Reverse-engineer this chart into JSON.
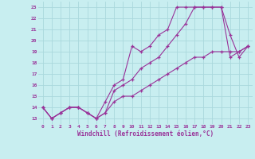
{
  "title": "",
  "xlabel": "Windchill (Refroidissement éolien,°C)",
  "bg_color": "#c8eef0",
  "line_color": "#993399",
  "grid_color": "#aad8dc",
  "xlim": [
    -0.5,
    23.5
  ],
  "ylim": [
    12.5,
    23.5
  ],
  "xticks": [
    0,
    1,
    2,
    3,
    4,
    5,
    6,
    7,
    8,
    9,
    10,
    11,
    12,
    13,
    14,
    15,
    16,
    17,
    18,
    19,
    20,
    21,
    22,
    23
  ],
  "yticks": [
    13,
    14,
    15,
    16,
    17,
    18,
    19,
    20,
    21,
    22,
    23
  ],
  "series": [
    [
      14,
      13,
      13.5,
      14,
      14,
      13.5,
      13,
      13.5,
      15.5,
      16,
      16.5,
      17.5,
      18,
      18.5,
      19.5,
      20.5,
      21.5,
      23,
      23,
      23,
      23,
      18.5,
      19,
      19.5
    ],
    [
      14,
      13,
      13.5,
      14,
      14,
      13.5,
      13,
      14.5,
      16,
      16.5,
      19.5,
      19,
      19.5,
      20.5,
      21,
      23,
      23,
      23,
      23,
      23,
      23,
      20.5,
      18.5,
      19.5
    ],
    [
      14,
      13,
      13.5,
      14,
      14,
      13.5,
      13,
      13.5,
      14.5,
      15,
      15,
      15.5,
      16,
      16.5,
      17,
      17.5,
      18,
      18.5,
      18.5,
      19,
      19,
      19,
      19,
      19.5
    ]
  ]
}
